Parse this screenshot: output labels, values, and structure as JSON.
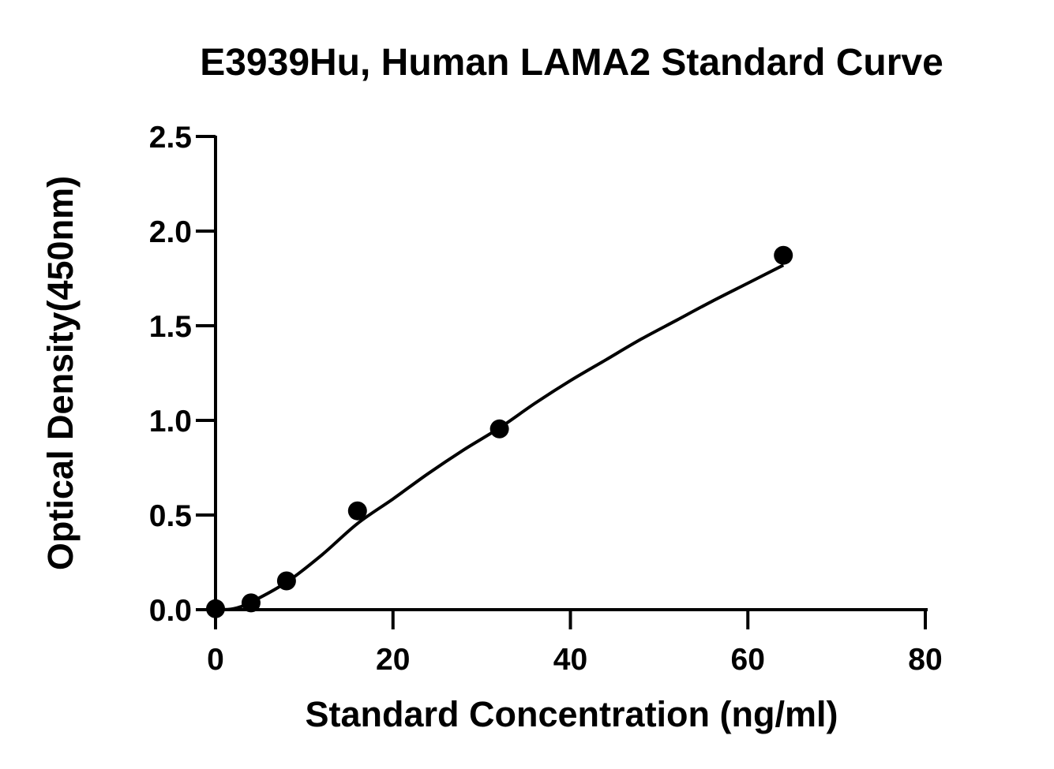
{
  "chart_data": {
    "type": "scatter",
    "title": "E3939Hu, Human LAMA2 Standard Curve",
    "xlabel": "Standard Concentration (ng/ml)",
    "ylabel": "Optical Density(450nm)",
    "xlim": [
      0,
      80
    ],
    "ylim": [
      0,
      2.5
    ],
    "x_ticks": [
      0,
      20,
      40,
      60,
      80
    ],
    "x_tick_labels": [
      "0",
      "20",
      "40",
      "60",
      "80"
    ],
    "y_ticks": [
      0,
      0.5,
      1.0,
      1.5,
      2.0,
      2.5
    ],
    "y_tick_labels": [
      "0.0",
      "0.5",
      "1.0",
      "1.5",
      "2.0",
      "2.5"
    ],
    "grid": false,
    "legend": "none",
    "series": [
      {
        "x": [
          0,
          4,
          8,
          16,
          32,
          64
        ],
        "y": [
          0.005,
          0.036,
          0.152,
          0.522,
          0.955,
          1.872
        ],
        "marker": "circle",
        "color": "#000000",
        "fit_curve": {
          "x": [
            0,
            2,
            4,
            8,
            12,
            16,
            20,
            24,
            28,
            32,
            36,
            40,
            44,
            48,
            52,
            56,
            60,
            64
          ],
          "y": [
            0.0,
            0.005,
            0.04,
            0.145,
            0.29,
            0.455,
            0.585,
            0.72,
            0.845,
            0.96,
            1.09,
            1.21,
            1.32,
            1.43,
            1.53,
            1.63,
            1.725,
            1.82
          ]
        }
      }
    ]
  }
}
